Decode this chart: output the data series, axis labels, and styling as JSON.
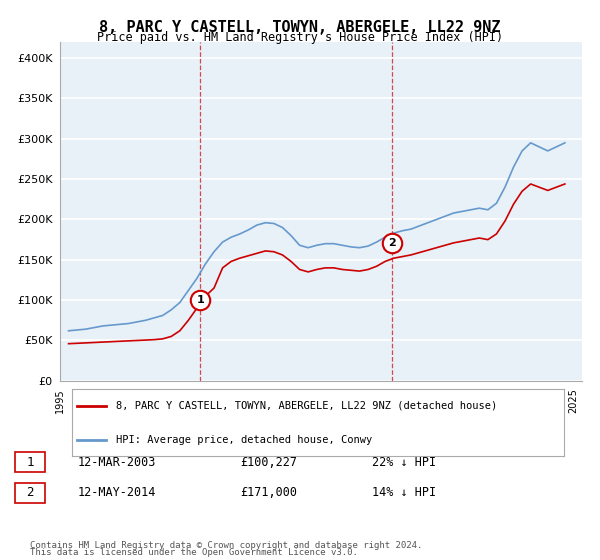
{
  "title": "8, PARC Y CASTELL, TOWYN, ABERGELE, LL22 9NZ",
  "subtitle": "Price paid vs. HM Land Registry's House Price Index (HPI)",
  "ylabel_ticks": [
    "£0",
    "£50K",
    "£100K",
    "£150K",
    "£200K",
    "£250K",
    "£300K",
    "£350K",
    "£400K"
  ],
  "ytick_vals": [
    0,
    50000,
    100000,
    150000,
    200000,
    250000,
    300000,
    350000,
    400000
  ],
  "ylim": [
    0,
    420000
  ],
  "xlim_start": 1995.0,
  "xlim_end": 2025.5,
  "transaction1": {
    "date_label": "12-MAR-2003",
    "year": 2003.2,
    "price": 100227,
    "pct": "22%",
    "direction": "↓",
    "marker": "1"
  },
  "transaction2": {
    "date_label": "12-MAY-2014",
    "year": 2014.37,
    "price": 171000,
    "pct": "14%",
    "direction": "↓",
    "marker": "2"
  },
  "legend_line1": "8, PARC Y CASTELL, TOWYN, ABERGELE, LL22 9NZ (detached house)",
  "legend_line2": "HPI: Average price, detached house, Conwy",
  "footer1": "Contains HM Land Registry data © Crown copyright and database right 2024.",
  "footer2": "This data is licensed under the Open Government Licence v3.0.",
  "line_color_red": "#cc0000",
  "line_color_blue": "#6699cc",
  "bg_color": "#e8f0f8",
  "grid_color": "#ffffff",
  "vline_color": "#cc0000",
  "hpi_data": {
    "years": [
      1995.5,
      1996.0,
      1996.5,
      1997.0,
      1997.5,
      1998.0,
      1998.5,
      1999.0,
      1999.5,
      2000.0,
      2000.5,
      2001.0,
      2001.5,
      2002.0,
      2002.5,
      2003.0,
      2003.5,
      2004.0,
      2004.5,
      2005.0,
      2005.5,
      2006.0,
      2006.5,
      2007.0,
      2007.5,
      2008.0,
      2008.5,
      2009.0,
      2009.5,
      2010.0,
      2010.5,
      2011.0,
      2011.5,
      2012.0,
      2012.5,
      2013.0,
      2013.5,
      2014.0,
      2014.5,
      2015.0,
      2015.5,
      2016.0,
      2016.5,
      2017.0,
      2017.5,
      2018.0,
      2018.5,
      2019.0,
      2019.5,
      2020.0,
      2020.5,
      2021.0,
      2021.5,
      2022.0,
      2022.5,
      2023.0,
      2023.5,
      2024.0,
      2024.5
    ],
    "values": [
      62000,
      63000,
      64000,
      66000,
      68000,
      69000,
      70000,
      71000,
      73000,
      75000,
      78000,
      81000,
      88000,
      97000,
      112000,
      127000,
      145000,
      160000,
      172000,
      178000,
      182000,
      187000,
      193000,
      196000,
      195000,
      190000,
      180000,
      168000,
      165000,
      168000,
      170000,
      170000,
      168000,
      166000,
      165000,
      167000,
      172000,
      178000,
      183000,
      186000,
      188000,
      192000,
      196000,
      200000,
      204000,
      208000,
      210000,
      212000,
      214000,
      212000,
      220000,
      240000,
      265000,
      285000,
      295000,
      290000,
      285000,
      290000,
      295000
    ]
  },
  "price_data": {
    "years": [
      1995.5,
      1996.0,
      1996.5,
      1997.0,
      1997.5,
      1998.0,
      1998.5,
      1999.0,
      1999.5,
      2000.0,
      2000.5,
      2001.0,
      2001.5,
      2002.0,
      2002.5,
      2003.0,
      2003.5,
      2004.0,
      2004.5,
      2005.0,
      2005.5,
      2006.0,
      2006.5,
      2007.0,
      2007.5,
      2008.0,
      2008.5,
      2009.0,
      2009.5,
      2010.0,
      2010.5,
      2011.0,
      2011.5,
      2012.0,
      2012.5,
      2013.0,
      2013.5,
      2014.0,
      2014.5,
      2015.0,
      2015.5,
      2016.0,
      2016.5,
      2017.0,
      2017.5,
      2018.0,
      2018.5,
      2019.0,
      2019.5,
      2020.0,
      2020.5,
      2021.0,
      2021.5,
      2022.0,
      2022.5,
      2023.0,
      2023.5,
      2024.0,
      2024.5
    ],
    "values": [
      46000,
      46500,
      47000,
      47500,
      48000,
      48500,
      49000,
      49500,
      50000,
      50500,
      51000,
      52000,
      55000,
      62000,
      75000,
      90000,
      105000,
      115000,
      140000,
      148000,
      152000,
      155000,
      158000,
      161000,
      160000,
      156000,
      148000,
      138000,
      135000,
      138000,
      140000,
      140000,
      138000,
      137000,
      136000,
      138000,
      142000,
      148000,
      152000,
      154000,
      156000,
      159000,
      162000,
      165000,
      168000,
      171000,
      173000,
      175000,
      177000,
      175000,
      182000,
      198000,
      219000,
      235000,
      244000,
      240000,
      236000,
      240000,
      244000
    ]
  }
}
